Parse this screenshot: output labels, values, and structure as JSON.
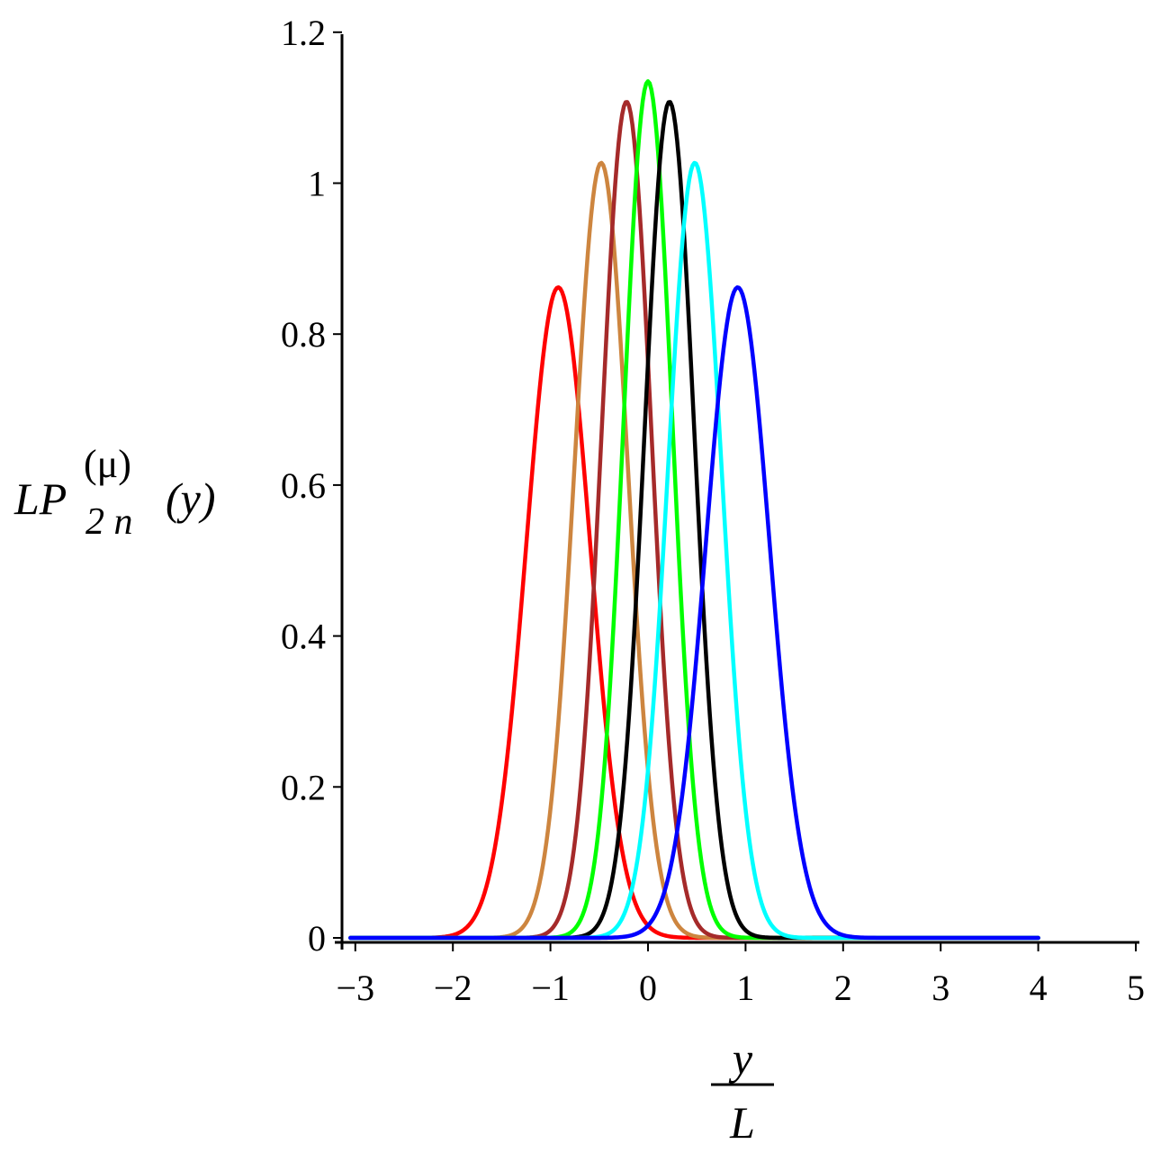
{
  "chart_data": {
    "type": "line",
    "title": "",
    "xlabel": {
      "numerator": "y",
      "denominator": "L"
    },
    "ylabel": {
      "base": "LP",
      "superscript": "(μ)",
      "subscript": "2 n",
      "argument": "(y)"
    },
    "xlim": [
      -3.1,
      5
    ],
    "ylim": [
      0,
      1.2
    ],
    "x_ticks": [
      -3,
      -2,
      -1,
      0,
      1,
      2,
      3,
      4,
      5
    ],
    "x_tick_labels": [
      "−3",
      "−2",
      "−1",
      "0",
      "1",
      "2",
      "3",
      "4",
      "5"
    ],
    "y_ticks": [
      0,
      0.2,
      0.4,
      0.6,
      0.8,
      1,
      1.2
    ],
    "y_tick_labels": [
      "0",
      "0.2",
      "0.4",
      "0.6",
      "0.8",
      "1",
      "1.2"
    ],
    "grid": false,
    "legend": "none",
    "x_domain": [
      -3.05,
      4.0
    ],
    "series": [
      {
        "color": "#ff0000",
        "peak_x": -0.92,
        "peak_y": 0.862,
        "width": 0.462
      },
      {
        "color": "#cd853f",
        "peak_x": -0.48,
        "peak_y": 1.027,
        "width": 0.388
      },
      {
        "color": "#a52a2a",
        "peak_x": -0.22,
        "peak_y": 1.108,
        "width": 0.36
      },
      {
        "color": "#00ff00",
        "peak_x": 0.0,
        "peak_y": 1.135,
        "width": 0.352
      },
      {
        "color": "#000000",
        "peak_x": 0.22,
        "peak_y": 1.108,
        "width": 0.36
      },
      {
        "color": "#00ffff",
        "peak_x": 0.48,
        "peak_y": 1.027,
        "width": 0.388
      },
      {
        "color": "#0000ff",
        "peak_x": 0.92,
        "peak_y": 0.862,
        "width": 0.462
      }
    ]
  }
}
